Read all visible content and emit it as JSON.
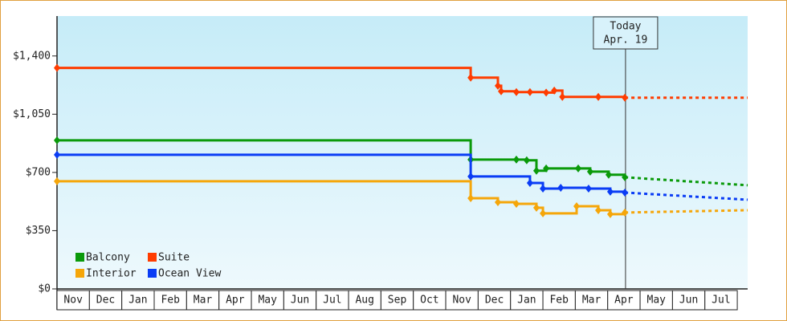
{
  "chart_data": {
    "type": "step-line",
    "categories": [
      "Nov",
      "Dec",
      "Jan",
      "Feb",
      "Mar",
      "Apr",
      "May",
      "Jun",
      "Jul",
      "Aug",
      "Sep",
      "Oct",
      "Nov",
      "Dec",
      "Jan",
      "Feb",
      "Mar",
      "Apr",
      "May",
      "Jun",
      "Jul"
    ],
    "xlim": [
      0,
      21.32
    ],
    "ylim": [
      0,
      1640
    ],
    "yticks": [
      {
        "value": 0,
        "label": "$0"
      },
      {
        "value": 350,
        "label": "$350"
      },
      {
        "value": 700,
        "label": "$700"
      },
      {
        "value": 1050,
        "label": "$1,050"
      },
      {
        "value": 1400,
        "label": "$1,400"
      }
    ],
    "grid": false,
    "annotation": {
      "title": "Today",
      "label": "Apr. 19",
      "x": 17.55
    },
    "series": [
      {
        "name": "Balcony",
        "color": "#0a9a0a",
        "x": [
          0,
          12.77,
          14.18,
          14.5,
          14.8,
          15.1,
          16.09,
          16.46,
          17.03,
          17.53
        ],
        "values": [
          893,
          777,
          777,
          773,
          710,
          724,
          724,
          705,
          686,
          671
        ],
        "forecast": {
          "x": [
            17.53,
            21.32
          ],
          "values": [
            671,
            623
          ]
        }
      },
      {
        "name": "Suite",
        "color": "#ff3c00",
        "x": [
          0,
          12.77,
          13.61,
          13.71,
          14.18,
          14.6,
          15.1,
          15.35,
          15.6,
          16.71,
          17.53
        ],
        "values": [
          1328,
          1270,
          1221,
          1188,
          1183,
          1183,
          1180,
          1192,
          1154,
          1154,
          1149
        ],
        "forecast": {
          "x": [
            17.53,
            21.32
          ],
          "values": [
            1149,
            1149
          ]
        }
      },
      {
        "name": "Interior",
        "color": "#f5a60a",
        "x": [
          0,
          12.77,
          13.61,
          14.18,
          14.8,
          15.0,
          16.04,
          16.71,
          17.08,
          17.53
        ],
        "values": [
          647,
          545,
          521,
          511,
          488,
          454,
          497,
          473,
          449,
          459
        ],
        "forecast": {
          "x": [
            17.53,
            21.32
          ],
          "values": [
            459,
            473
          ]
        }
      },
      {
        "name": "Ocean View",
        "color": "#0a3cf5",
        "x": [
          0,
          12.77,
          14.6,
          15.0,
          15.55,
          16.41,
          17.08,
          17.53
        ],
        "values": [
          806,
          676,
          637,
          603,
          608,
          603,
          584,
          579
        ],
        "forecast": {
          "x": [
            17.53,
            21.32
          ],
          "values": [
            579,
            536
          ]
        }
      }
    ]
  }
}
